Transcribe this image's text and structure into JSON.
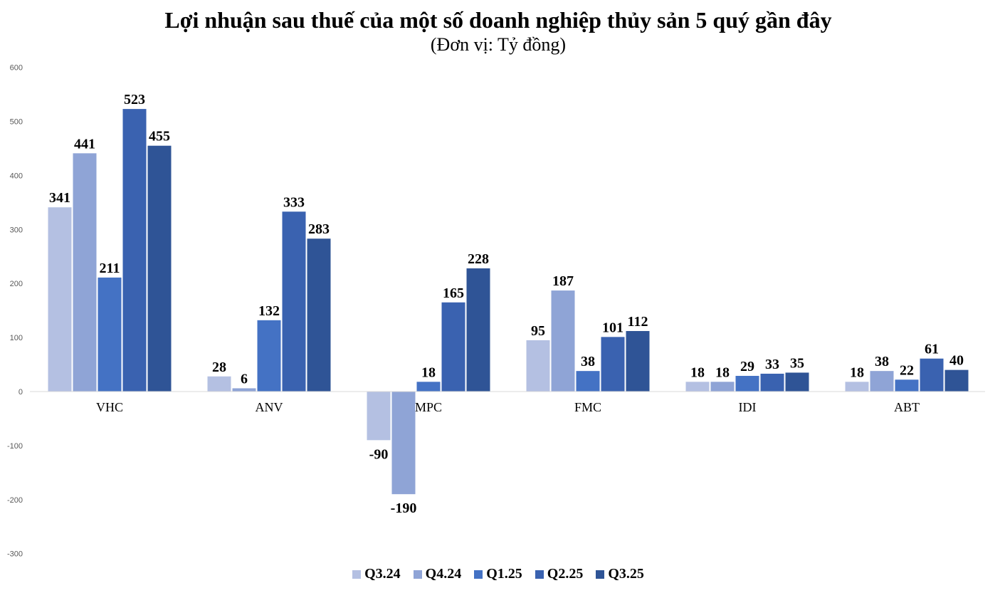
{
  "chart_data": {
    "type": "bar",
    "title": "Lợi nhuận sau thuế của một số doanh nghiệp thủy sản 5 quý gần đây",
    "subtitle": "(Đơn vị: Tỷ đồng)",
    "categories": [
      "VHC",
      "ANV",
      "MPC",
      "FMC",
      "IDI",
      "ABT"
    ],
    "ylim": [
      -300,
      600
    ],
    "yticks": [
      600,
      500,
      400,
      300,
      200,
      100,
      0,
      -100,
      -200,
      -300
    ],
    "grid": false,
    "legend_position": "bottom",
    "series": [
      {
        "name": "Q3.24",
        "color": "#b4c0e2",
        "values": [
          341,
          28,
          -90,
          95,
          18,
          18
        ]
      },
      {
        "name": "Q4.24",
        "color": "#8fa4d6",
        "values": [
          441,
          6,
          -190,
          187,
          18,
          38
        ]
      },
      {
        "name": "Q1.25",
        "color": "#4472c4",
        "values": [
          211,
          132,
          18,
          38,
          29,
          22
        ]
      },
      {
        "name": "Q2.25",
        "color": "#3a62b0",
        "values": [
          523,
          333,
          165,
          101,
          33,
          61
        ]
      },
      {
        "name": "Q3.25",
        "color": "#2f5496",
        "values": [
          455,
          283,
          228,
          112,
          35,
          40
        ]
      }
    ]
  }
}
